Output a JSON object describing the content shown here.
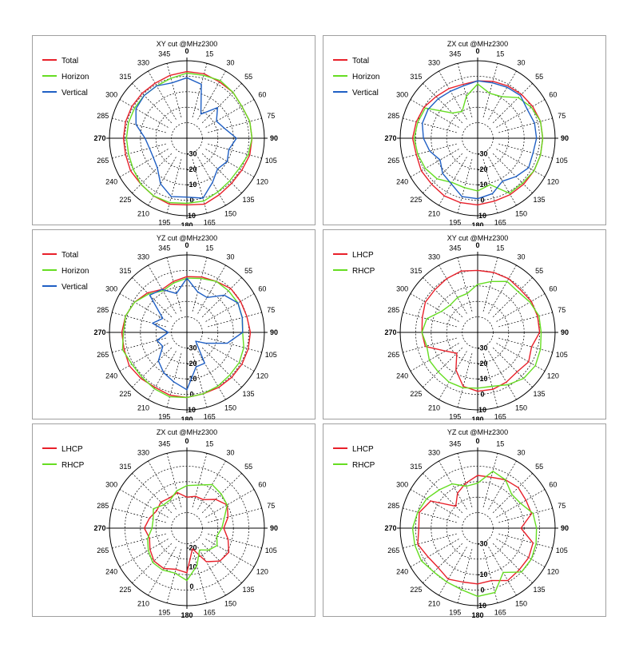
{
  "page": {
    "background": "#ffffff"
  },
  "chart_data": [
    {
      "type": "line",
      "polar": true,
      "title": "XY cut @MHz2300",
      "theta_labels": [
        "0",
        "15",
        "30",
        "55",
        "60",
        "75",
        "90",
        "105",
        "120",
        "135",
        "150",
        "165",
        "180",
        "195",
        "210",
        "225",
        "240",
        "265",
        "270",
        "285",
        "300",
        "315",
        "330",
        "345"
      ],
      "r_labels": [
        "-30",
        "-20",
        "-10",
        "0",
        "10"
      ],
      "rlim": [
        -40,
        10
      ],
      "series": [
        {
          "name": "Total",
          "color": "#e8202a",
          "values": [
            3,
            3,
            2,
            2,
            1,
            2,
            2,
            2,
            1,
            1,
            2,
            4,
            3,
            4,
            3,
            2,
            2,
            1,
            1,
            1,
            1,
            1,
            1,
            2
          ]
        },
        {
          "name": "Horizon",
          "color": "#66dd22",
          "values": [
            2,
            2,
            3,
            2,
            1,
            2,
            2,
            1,
            -1,
            -1,
            0,
            2,
            2,
            3,
            3,
            2,
            0,
            -1,
            -1,
            -1,
            -1,
            -1,
            -1,
            0
          ]
        },
        {
          "name": "Vertical",
          "color": "#1f5fc4",
          "values": [
            -1,
            -4,
            -22,
            -12,
            -18,
            -15,
            -8,
            -12,
            -10,
            -12,
            -7,
            0,
            -2,
            -1,
            -6,
            -13,
            -15,
            -15,
            -13,
            -6,
            -2,
            -1,
            -1,
            -3
          ]
        }
      ]
    },
    {
      "type": "line",
      "polar": true,
      "title": "ZX cut @MHz2300",
      "theta_labels": [
        "0",
        "15",
        "30",
        "55",
        "60",
        "75",
        "90",
        "105",
        "120",
        "135",
        "150",
        "165",
        "180",
        "195",
        "210",
        "225",
        "240",
        "265",
        "270",
        "285",
        "300",
        "315",
        "330",
        "345"
      ],
      "r_labels": [
        "-30",
        "-20",
        "-10",
        "0",
        "10"
      ],
      "rlim": [
        -40,
        10
      ],
      "series": [
        {
          "name": "Total",
          "color": "#e8202a",
          "values": [
            -3,
            -2,
            -1,
            0,
            1,
            2,
            2,
            2,
            2,
            2,
            2,
            2,
            3,
            3,
            3,
            2,
            2,
            1,
            2,
            1,
            0,
            -2,
            -3,
            -4
          ]
        },
        {
          "name": "Horizon",
          "color": "#66dd22",
          "values": [
            -5,
            -10,
            -9,
            -3,
            0,
            2,
            2,
            2,
            2,
            1,
            1,
            -9,
            -6,
            -7,
            -7,
            -3,
            -1,
            0,
            1,
            0,
            -1,
            -17,
            -20,
            -12
          ]
        },
        {
          "name": "Vertical",
          "color": "#1f5fc4",
          "values": [
            -3,
            -3,
            -2,
            -1,
            -3,
            -2,
            -2,
            -3,
            -2,
            -5,
            -8,
            -3,
            -1,
            -1,
            -6,
            -8,
            -12,
            -8,
            -5,
            -3,
            -3,
            -4,
            -5,
            -5
          ]
        }
      ]
    },
    {
      "type": "line",
      "polar": true,
      "title": "YZ cut @MHz2300",
      "theta_labels": [
        "0",
        "15",
        "30",
        "55",
        "60",
        "75",
        "90",
        "105",
        "120",
        "135",
        "150",
        "165",
        "180",
        "195",
        "210",
        "225",
        "240",
        "265",
        "270",
        "285",
        "300",
        "315",
        "330",
        "345"
      ],
      "r_labels": [
        "-30",
        "-20",
        "-10",
        "0",
        "10"
      ],
      "rlim": [
        -40,
        10
      ],
      "series": [
        {
          "name": "Total",
          "color": "#e8202a",
          "values": [
            -4,
            -3,
            -2,
            0,
            0,
            0,
            1,
            1,
            1,
            1,
            1,
            1,
            2,
            2,
            1,
            2,
            3,
            2,
            2,
            1,
            -1,
            -4,
            -8,
            -6
          ]
        },
        {
          "name": "Horizon",
          "color": "#66dd22",
          "values": [
            -5,
            -4,
            -2,
            -2,
            -2,
            -3,
            -4,
            -2,
            -1,
            -1,
            0,
            1,
            2,
            3,
            2,
            1,
            1,
            3,
            1,
            1,
            -1,
            -5,
            -9,
            -7
          ]
        },
        {
          "name": "Vertical",
          "color": "#1f5fc4",
          "values": [
            -5,
            -13,
            -14,
            -6,
            -2,
            -3,
            -4,
            -13,
            -26,
            -32,
            -17,
            -17,
            -3,
            -7,
            -10,
            -14,
            -22,
            -20,
            -28,
            -17,
            -22,
            -6,
            -8,
            -14
          ]
        }
      ]
    },
    {
      "type": "line",
      "polar": true,
      "title": "XY cut @MHz2300",
      "theta_labels": [
        "0",
        "15",
        "30",
        "55",
        "60",
        "75",
        "90",
        "105",
        "120",
        "135",
        "150",
        "165",
        "180",
        "195",
        "210",
        "225",
        "240",
        "265",
        "270",
        "285",
        "300",
        "315",
        "330",
        "345"
      ],
      "r_labels": [
        "-30",
        "-20",
        "-10",
        "0",
        "10"
      ],
      "rlim": [
        -40,
        10
      ],
      "series": [
        {
          "name": "LHCP",
          "color": "#e8202a",
          "values": [
            0,
            0,
            0,
            -1,
            0,
            0,
            0,
            -4,
            -2,
            -4,
            -3,
            -2,
            -2,
            -4,
            -12,
            -21,
            -16,
            -5,
            -4,
            -3,
            -1,
            -1,
            0,
            1
          ]
        },
        {
          "name": "RHCP",
          "color": "#66dd22",
          "values": [
            -9,
            -6,
            -2,
            -3,
            -1,
            1,
            1,
            2,
            3,
            2,
            -1,
            -4,
            -4,
            -3,
            -3,
            -4,
            -4,
            -6,
            -4,
            -6,
            -13,
            -15,
            -14,
            -14
          ]
        }
      ]
    },
    {
      "type": "line",
      "polar": true,
      "title": "ZX cut @MHz2300",
      "theta_labels": [
        "0",
        "15",
        "30",
        "55",
        "60",
        "75",
        "90",
        "105",
        "120",
        "135",
        "150",
        "165",
        "180",
        "195",
        "210",
        "225",
        "240",
        "265",
        "270",
        "285",
        "300",
        "315",
        "330",
        "345"
      ],
      "r_labels": [
        "-20",
        "-10",
        "0"
      ],
      "rlim": [
        -30,
        10
      ],
      "series": [
        {
          "name": "LHCP",
          "color": "#e8202a",
          "values": [
            -14,
            -13,
            -13,
            -9,
            -6,
            -8,
            -11,
            -8,
            -5,
            -6,
            -10,
            -19,
            -7,
            -8,
            -6,
            -6,
            -8,
            -10,
            -8,
            -10,
            -12,
            -11,
            -12,
            -11
          ]
        },
        {
          "name": "RHCP",
          "color": "#66dd22",
          "values": [
            -8,
            -7,
            -4,
            -5,
            -6,
            -10,
            -12,
            -14,
            -12,
            -14,
            -17,
            -10,
            -3,
            -6,
            -5,
            -5,
            -7,
            -9,
            -12,
            -12,
            -10,
            -13,
            -13,
            -10
          ]
        }
      ]
    },
    {
      "type": "line",
      "polar": true,
      "title": "YZ cut @MHz2300",
      "theta_labels": [
        "0",
        "15",
        "30",
        "55",
        "60",
        "75",
        "90",
        "105",
        "120",
        "135",
        "150",
        "165",
        "180",
        "195",
        "210",
        "225",
        "240",
        "265",
        "270",
        "285",
        "300",
        "315",
        "330",
        "345"
      ],
      "r_labels": [
        "-30",
        "-10",
        "0",
        "10"
      ],
      "rlim": [
        -40,
        10
      ],
      "series": [
        {
          "name": "LHCP",
          "color": "#e8202a",
          "values": [
            -6,
            -6,
            -4,
            -3,
            -4,
            -4,
            -12,
            -3,
            -2,
            -2,
            -1,
            -5,
            -4,
            -4,
            -2,
            -4,
            -3,
            0,
            -2,
            -1,
            -5,
            -20,
            -14,
            -10
          ]
        },
        {
          "name": "RHCP",
          "color": "#66dd22",
          "values": [
            -11,
            -2,
            -4,
            -9,
            -8,
            -3,
            -2,
            -1,
            0,
            0,
            -7,
            3,
            4,
            1,
            0,
            0,
            2,
            2,
            2,
            0,
            -2,
            -5,
            -7,
            -12
          ]
        }
      ]
    }
  ]
}
